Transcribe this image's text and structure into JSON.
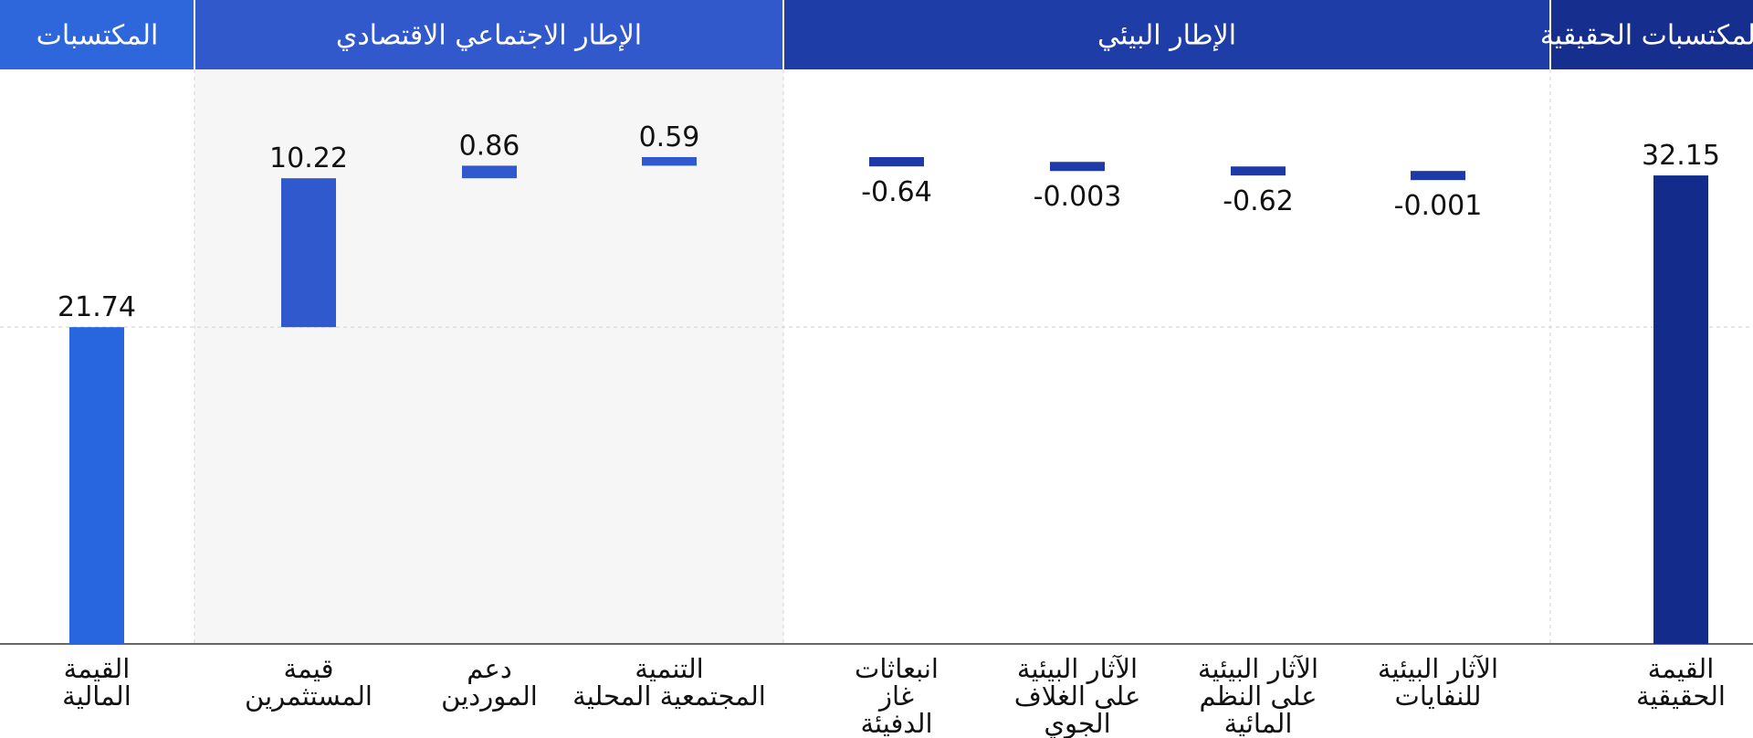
{
  "chart_data": {
    "type": "waterfall",
    "groups": [
      {
        "label": "المكتسبات",
        "color": "#2e66dc",
        "categories": [
          0
        ]
      },
      {
        "label": "الإطار الاجتماعي الاقتصادي",
        "color": "#3259cc",
        "categories": [
          1,
          2,
          3
        ]
      },
      {
        "label": "الإطار البيئي",
        "color": "#1e3da6",
        "categories": [
          4,
          5,
          6,
          7
        ]
      },
      {
        "label": "المكتسبات الحقيقية",
        "color": "#162f8e",
        "categories": [
          8
        ]
      }
    ],
    "categories": [
      {
        "lines": [
          "القيمة",
          "المالية"
        ],
        "value": 21.74,
        "label": "21.74",
        "kind": "total",
        "color": "#2866e0"
      },
      {
        "lines": [
          "قيمة",
          "المستثمرين"
        ],
        "value": 10.22,
        "label": "10.22",
        "kind": "delta",
        "color": "#3159ce"
      },
      {
        "lines": [
          "دعم",
          "الموردين"
        ],
        "value": 0.86,
        "label": "0.86",
        "kind": "delta",
        "color": "#3159ce"
      },
      {
        "lines": [
          "التنمية",
          "المجتمعية المحلية"
        ],
        "value": 0.59,
        "label": "0.59",
        "kind": "delta",
        "color": "#3159ce"
      },
      {
        "lines": [
          "انبعاثات",
          "غاز",
          "الدفيئة"
        ],
        "value": -0.64,
        "label": "-0.64",
        "kind": "delta",
        "color": "#1e3aa8"
      },
      {
        "lines": [
          "الآثار البيئية",
          "على الغلاف",
          "الجوي"
        ],
        "value": -0.003,
        "label": "-0.003",
        "kind": "delta",
        "color": "#1e3aa8"
      },
      {
        "lines": [
          "الآثار البيئية",
          "على النظم",
          "المائية"
        ],
        "value": -0.62,
        "label": "-0.62",
        "kind": "delta",
        "color": "#1e3aa8"
      },
      {
        "lines": [
          "الآثار البيئية",
          "للنفايات"
        ],
        "value": -0.001,
        "label": "-0.001",
        "kind": "delta",
        "color": "#1e3aa8"
      },
      {
        "lines": [
          "القيمة",
          "الحقيقية"
        ],
        "value": 32.15,
        "label": "32.15",
        "kind": "total",
        "color": "#132c8c"
      }
    ],
    "highlight_group": 1,
    "highlight_color": "#f6f6f6",
    "grid": true
  }
}
